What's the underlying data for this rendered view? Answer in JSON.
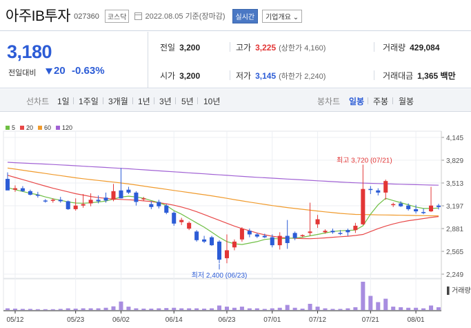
{
  "header": {
    "stock_name": "아주IB투자",
    "stock_code": "027360",
    "market": "코스닥",
    "date_text": "2022.08.05 기준(장마감)",
    "realtime_label": "실시간",
    "overview_label": "기업개요 ⌄"
  },
  "summary": {
    "price": "3,180",
    "change_label": "전일대비",
    "change_amount": "20",
    "change_percent": "-0.63%",
    "direction": "down",
    "prev_close": {
      "label": "전일",
      "value": "3,200"
    },
    "high": {
      "label": "고가",
      "value": "3,225",
      "sub": "(상한가 4,160)"
    },
    "volume": {
      "label": "거래량",
      "value": "429,084"
    },
    "open": {
      "label": "시가",
      "value": "3,200"
    },
    "low": {
      "label": "저가",
      "value": "3,145",
      "sub": "(하한가 2,240)"
    },
    "trade_value": {
      "label": "거래대금",
      "value": "1,365 백만"
    }
  },
  "tabs": {
    "line_label": "선차트",
    "line_periods": [
      "1일",
      "1주일",
      "3개월",
      "1년",
      "3년",
      "5년",
      "10년"
    ],
    "candle_label": "봉차트",
    "candle_periods": [
      "일봉",
      "주봉",
      "월봉"
    ],
    "active": "일봉"
  },
  "colors": {
    "up": "#e23636",
    "down": "#2c5cd6",
    "ma5": "#6fbf44",
    "ma20": "#e84848",
    "ma60": "#f09a2c",
    "ma120": "#a162d4",
    "volume": "#a88de0"
  },
  "chart_data": {
    "type": "candlestick",
    "legend": [
      {
        "name": "5",
        "color": "#6fbf44"
      },
      {
        "name": "20",
        "color": "#e84848"
      },
      {
        "name": "60",
        "color": "#f09a2c"
      },
      {
        "name": "120",
        "color": "#a162d4"
      }
    ],
    "y_ticks": [
      2249,
      2565,
      2881,
      3197,
      3513,
      3829,
      4145
    ],
    "ylim": [
      2249,
      4145
    ],
    "x_labels": [
      {
        "i": 1,
        "label": "05/12"
      },
      {
        "i": 9,
        "label": "05/23"
      },
      {
        "i": 15,
        "label": "06/02"
      },
      {
        "i": 22,
        "label": "06/14"
      },
      {
        "i": 29,
        "label": "06/23"
      },
      {
        "i": 35,
        "label": "07/01"
      },
      {
        "i": 41,
        "label": "07/12"
      },
      {
        "i": 48,
        "label": "07/21"
      },
      {
        "i": 54,
        "label": "08/01"
      }
    ],
    "annotations": {
      "max": {
        "text": "최고 3,720 (07/21)",
        "i": 47,
        "value": 3720
      },
      "min": {
        "text": "최저 2,400 (06/23)",
        "i": 28,
        "value": 2400
      }
    },
    "volume_label": "거래량",
    "candles": [
      [
        3570,
        3660,
        3420,
        3410
      ],
      [
        3420,
        3480,
        3390,
        3440
      ],
      [
        3440,
        3470,
        3390,
        3400
      ],
      [
        3400,
        3420,
        3340,
        3350
      ],
      [
        3350,
        3390,
        3310,
        3340
      ],
      [
        3270,
        3290,
        3240,
        3260
      ],
      [
        3270,
        3300,
        3240,
        3280
      ],
      [
        3280,
        3320,
        3240,
        3260
      ],
      [
        3260,
        3270,
        3140,
        3150
      ],
      [
        3150,
        3300,
        3130,
        3200
      ],
      [
        3200,
        3360,
        3170,
        3220
      ],
      [
        3230,
        3370,
        3190,
        3280
      ],
      [
        3280,
        3340,
        3230,
        3260
      ],
      [
        3310,
        3380,
        3240,
        3270
      ],
      [
        3280,
        3500,
        3260,
        3400
      ],
      [
        3410,
        3720,
        3300,
        3300
      ],
      [
        3420,
        3460,
        3360,
        3380
      ],
      [
        3380,
        3400,
        3200,
        3250
      ],
      [
        3290,
        3320,
        3260,
        3300
      ],
      [
        3220,
        3260,
        3150,
        3180
      ],
      [
        3250,
        3280,
        3160,
        3190
      ],
      [
        3200,
        3220,
        3080,
        3100
      ],
      [
        3100,
        3120,
        2920,
        2950
      ],
      [
        2970,
        3030,
        2930,
        3000
      ],
      [
        2880,
        2980,
        2860,
        2960
      ],
      [
        2840,
        2860,
        2700,
        2720
      ],
      [
        2730,
        2780,
        2680,
        2700
      ],
      [
        2760,
        2780,
        2640,
        2650
      ],
      [
        2700,
        2720,
        2400,
        2450
      ],
      [
        2470,
        2800,
        2400,
        2580
      ],
      [
        2620,
        2730,
        2580,
        2700
      ],
      [
        2730,
        2900,
        2700,
        2880
      ],
      [
        2850,
        2880,
        2760,
        2800
      ],
      [
        2800,
        2820,
        2750,
        2770
      ],
      [
        2780,
        2810,
        2750,
        2760
      ],
      [
        2760,
        2800,
        2620,
        2650
      ],
      [
        2650,
        2830,
        2590,
        2780
      ],
      [
        2780,
        3000,
        2600,
        2680
      ],
      [
        2820,
        2840,
        2720,
        2750
      ],
      [
        2780,
        2800,
        2760,
        2790
      ],
      [
        2820,
        3240,
        2780,
        2840
      ],
      [
        2940,
        3070,
        2890,
        3010
      ],
      [
        2830,
        2870,
        2810,
        2850
      ],
      [
        2850,
        2880,
        2810,
        2830
      ],
      [
        2820,
        2860,
        2790,
        2810
      ],
      [
        2860,
        2880,
        2780,
        2830
      ],
      [
        2860,
        2960,
        2820,
        2920
      ],
      [
        2940,
        3720,
        2930,
        3430
      ],
      [
        3430,
        3470,
        3360,
        3420
      ],
      [
        3410,
        3440,
        3340,
        3380
      ],
      [
        3380,
        3560,
        3280,
        3540
      ],
      [
        3210,
        3240,
        3180,
        3220
      ],
      [
        3230,
        3260,
        3180,
        3190
      ],
      [
        3200,
        3230,
        3130,
        3150
      ],
      [
        3150,
        3210,
        3090,
        3120
      ],
      [
        3110,
        3160,
        3080,
        3100
      ],
      [
        3120,
        3460,
        3110,
        3200
      ],
      [
        3200,
        3225,
        3145,
        3180
      ]
    ],
    "ma5": [
      3450,
      3420,
      3395,
      3370,
      3350,
      3320,
      3295,
      3275,
      3250,
      3235,
      3232,
      3238,
      3250,
      3262,
      3290,
      3318,
      3330,
      3320,
      3300,
      3270,
      3240,
      3200,
      3130,
      3080,
      3020,
      2960,
      2900,
      2830,
      2760,
      2700,
      2670,
      2660,
      2680,
      2700,
      2730,
      2740,
      2740,
      2745,
      2750,
      2760,
      2780,
      2800,
      2820,
      2840,
      2850,
      2855,
      2860,
      2920,
      3080,
      3210,
      3300,
      3270,
      3240,
      3210,
      3180,
      3160,
      3160,
      3165
    ],
    "ma20": [
      3620,
      3590,
      3560,
      3530,
      3500,
      3470,
      3440,
      3415,
      3390,
      3365,
      3345,
      3325,
      3310,
      3300,
      3290,
      3285,
      3280,
      3275,
      3265,
      3255,
      3240,
      3225,
      3205,
      3180,
      3150,
      3115,
      3075,
      3035,
      2995,
      2955,
      2915,
      2880,
      2850,
      2820,
      2795,
      2775,
      2760,
      2750,
      2745,
      2742,
      2740,
      2745,
      2752,
      2760,
      2768,
      2775,
      2785,
      2800,
      2840,
      2880,
      2915,
      2945,
      2970,
      2990,
      3005,
      3020,
      3035,
      3048
    ],
    "ma60": [
      3720,
      3705,
      3690,
      3675,
      3660,
      3645,
      3630,
      3615,
      3600,
      3585,
      3572,
      3560,
      3548,
      3537,
      3525,
      3513,
      3500,
      3485,
      3470,
      3455,
      3440,
      3425,
      3410,
      3395,
      3380,
      3365,
      3350,
      3335,
      3318,
      3300,
      3282,
      3265,
      3248,
      3232,
      3216,
      3200,
      3186,
      3172,
      3160,
      3148,
      3136,
      3124,
      3113,
      3102,
      3092,
      3084,
      3077,
      3075,
      3073,
      3071,
      3070,
      3068,
      3066,
      3064,
      3062,
      3060,
      3058,
      3057
    ],
    "ma120": [
      3800,
      3795,
      3790,
      3785,
      3780,
      3775,
      3770,
      3764,
      3758,
      3752,
      3746,
      3740,
      3734,
      3728,
      3722,
      3716,
      3710,
      3703,
      3696,
      3689,
      3682,
      3675,
      3668,
      3661,
      3654,
      3647,
      3640,
      3633,
      3626,
      3619,
      3612,
      3605,
      3598,
      3592,
      3586,
      3580,
      3574,
      3568,
      3562,
      3556,
      3550,
      3544,
      3538,
      3532,
      3526,
      3521,
      3516,
      3512,
      3508,
      3505,
      3502,
      3499,
      3496,
      3493,
      3490,
      3487,
      3484,
      3482
    ],
    "volume_rel": [
      0.06,
      0.05,
      0.04,
      0.04,
      0.03,
      0.03,
      0.03,
      0.04,
      0.06,
      0.05,
      0.06,
      0.06,
      0.06,
      0.08,
      0.13,
      0.3,
      0.12,
      0.06,
      0.05,
      0.05,
      0.06,
      0.07,
      0.08,
      0.06,
      0.06,
      0.06,
      0.05,
      0.06,
      0.16,
      0.12,
      0.08,
      0.12,
      0.06,
      0.06,
      0.04,
      0.06,
      0.08,
      0.18,
      0.08,
      0.05,
      0.22,
      0.12,
      0.06,
      0.04,
      0.04,
      0.06,
      0.1,
      1.0,
      0.5,
      0.28,
      0.4,
      0.12,
      0.1,
      0.08,
      0.08,
      0.06,
      0.16,
      0.1
    ]
  }
}
